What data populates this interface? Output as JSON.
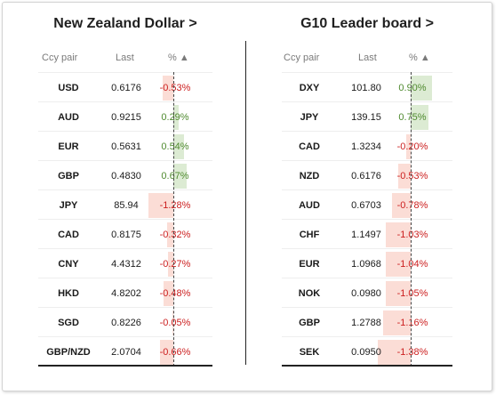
{
  "left_panel": {
    "title": "New Zealand Dollar >",
    "headers": {
      "pair": "Ccy pair",
      "last": "Last",
      "pct": "% ▲"
    },
    "rows": [
      {
        "pair": "USD",
        "last": "0.6176",
        "pct": "-0.53%",
        "value": -0.53
      },
      {
        "pair": "AUD",
        "last": "0.9215",
        "pct": "0.29%",
        "value": 0.29
      },
      {
        "pair": "EUR",
        "last": "0.5631",
        "pct": "0.54%",
        "value": 0.54
      },
      {
        "pair": "GBP",
        "last": "0.4830",
        "pct": "0.67%",
        "value": 0.67
      },
      {
        "pair": "JPY",
        "last": "85.94",
        "pct": "-1.28%",
        "value": -1.28
      },
      {
        "pair": "CAD",
        "last": "0.8175",
        "pct": "-0.32%",
        "value": -0.32
      },
      {
        "pair": "CNY",
        "last": "4.4312",
        "pct": "-0.27%",
        "value": -0.27
      },
      {
        "pair": "HKD",
        "last": "4.8202",
        "pct": "-0.48%",
        "value": -0.48
      },
      {
        "pair": "SGD",
        "last": "0.8226",
        "pct": "-0.05%",
        "value": -0.05
      },
      {
        "pair": "GBP/NZD",
        "last": "2.0704",
        "pct": "-0.66%",
        "value": -0.66
      }
    ]
  },
  "right_panel": {
    "title": "G10 Leader board >",
    "headers": {
      "pair": "Ccy pair",
      "last": "Last",
      "pct": "% ▲"
    },
    "rows": [
      {
        "pair": "DXY",
        "last": "101.80",
        "pct": "0.90%",
        "value": 0.9
      },
      {
        "pair": "JPY",
        "last": "139.15",
        "pct": "0.75%",
        "value": 0.75
      },
      {
        "pair": "CAD",
        "last": "1.3234",
        "pct": "-0.20%",
        "value": -0.2
      },
      {
        "pair": "NZD",
        "last": "0.6176",
        "pct": "-0.53%",
        "value": -0.53
      },
      {
        "pair": "AUD",
        "last": "0.6703",
        "pct": "-0.78%",
        "value": -0.78
      },
      {
        "pair": "CHF",
        "last": "1.1497",
        "pct": "-1.03%",
        "value": -1.03
      },
      {
        "pair": "EUR",
        "last": "1.0968",
        "pct": "-1.04%",
        "value": -1.04
      },
      {
        "pair": "NOK",
        "last": "0.0980",
        "pct": "-1.05%",
        "value": -1.05
      },
      {
        "pair": "GBP",
        "last": "1.2788",
        "pct": "-1.16%",
        "value": -1.16
      },
      {
        "pair": "SEK",
        "last": "0.0950",
        "pct": "-1.38%",
        "value": -1.38
      }
    ]
  },
  "colors": {
    "positive_bar": "#dcebd3",
    "negative_bar": "#fbddd6",
    "positive_text": "#4f8a2f",
    "negative_text": "#cc1f1f"
  }
}
